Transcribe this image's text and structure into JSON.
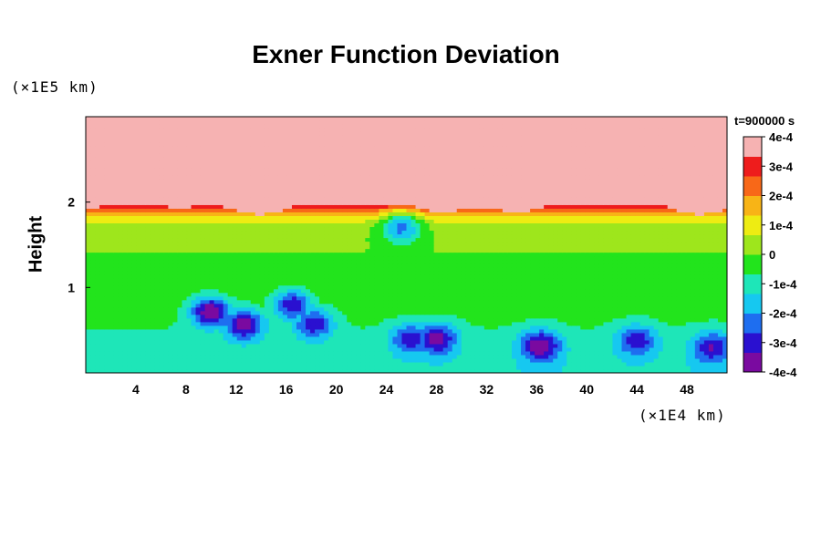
{
  "chart_data": {
    "type": "heatmap",
    "title": "Exner Function Deviation",
    "ylabel": "Height",
    "y_unit": "(×1E5 km)",
    "x_unit": "(×1E4 km)",
    "time_label": "t=900000 s",
    "xlim": [
      0,
      51.2
    ],
    "ylim": [
      0,
      3.0
    ],
    "x_ticks": [
      4,
      8,
      12,
      16,
      20,
      24,
      28,
      32,
      36,
      40,
      44,
      48
    ],
    "y_ticks": [
      1,
      2
    ],
    "colorbar": {
      "min": -0.0004,
      "max": 0.0004,
      "tick_values": [
        0.0004,
        0.0003,
        0.0002,
        0.0001,
        0,
        -0.0001,
        -0.0002,
        -0.0003,
        -0.0004
      ],
      "tick_labels": [
        "4e-4",
        "3e-4",
        "2e-4",
        "1e-4",
        "0",
        "-1e-4",
        "-2e-4",
        "-3e-4",
        "-4e-4"
      ],
      "colors": [
        "#7a0aa0",
        "#2a10d0",
        "#1e6ef0",
        "#16c8f0",
        "#1ee6b8",
        "#22e41c",
        "#9ee61c",
        "#eeec12",
        "#f8b416",
        "#f86818",
        "#ee1c1c",
        "#f6b2b2"
      ]
    },
    "features": [
      {
        "kind": "upper_layer",
        "y_above": 1.95,
        "value": 0.0004
      },
      {
        "kind": "minimum",
        "x": 10.0,
        "y": 0.72,
        "value": -0.0004
      },
      {
        "kind": "minimum",
        "x": 12.6,
        "y": 0.57,
        "value": -0.00038
      },
      {
        "kind": "minimum",
        "x": 16.5,
        "y": 0.8,
        "value": -0.00032
      },
      {
        "kind": "minimum",
        "x": 18.2,
        "y": 0.58,
        "value": -0.00032
      },
      {
        "kind": "minimum",
        "x": 26.0,
        "y": 0.4,
        "value": -0.00032
      },
      {
        "kind": "minimum",
        "x": 28.0,
        "y": 0.4,
        "value": -0.00038
      },
      {
        "kind": "minimum",
        "x": 36.3,
        "y": 0.32,
        "value": -0.0004
      },
      {
        "kind": "minimum",
        "x": 44.0,
        "y": 0.38,
        "value": -0.00032
      },
      {
        "kind": "minimum",
        "x": 50.0,
        "y": 0.3,
        "value": -0.00034
      },
      {
        "kind": "minimum",
        "x": 25.2,
        "y": 1.7,
        "value": -0.00022
      }
    ]
  }
}
